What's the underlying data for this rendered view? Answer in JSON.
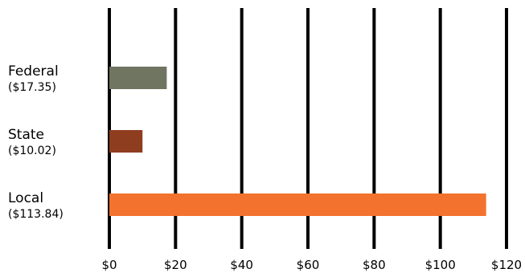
{
  "chart_data": {
    "type": "bar",
    "orientation": "horizontal",
    "categories": [
      "Federal",
      "State",
      "Local"
    ],
    "category_values_text": [
      "($17.35)",
      "($10.02)",
      "($113.84)"
    ],
    "values": [
      17.35,
      10.02,
      113.84
    ],
    "bar_colors": [
      "#6f7561",
      "#8e3d1f",
      "#f2722e"
    ],
    "xlim": [
      0,
      120
    ],
    "xticks": [
      0,
      20,
      40,
      60,
      80,
      100,
      120
    ],
    "xtick_labels": [
      "$0",
      "$20",
      "$40",
      "$60",
      "$80",
      "$100",
      "$120"
    ],
    "grid": "vertical",
    "title": "",
    "xlabel": "",
    "ylabel": ""
  }
}
